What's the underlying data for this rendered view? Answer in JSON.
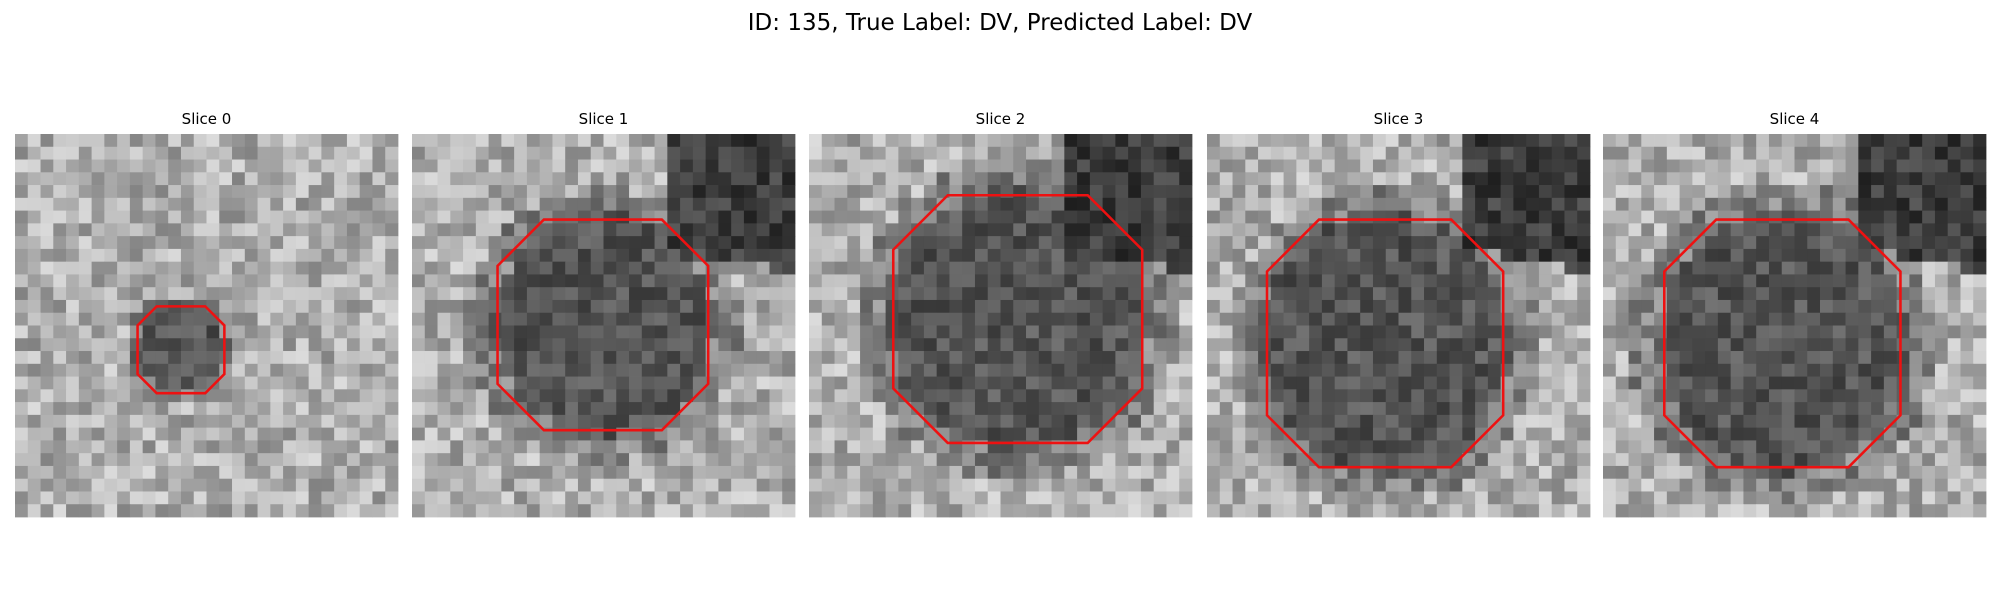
{
  "title": "ID: 135, True Label: DV, Predicted Label: DV",
  "panels": [
    {
      "title": "Slice 0"
    },
    {
      "title": "Slice 1"
    },
    {
      "title": "Slice 2"
    },
    {
      "title": "Slice 3"
    },
    {
      "title": "Slice 4"
    }
  ]
}
